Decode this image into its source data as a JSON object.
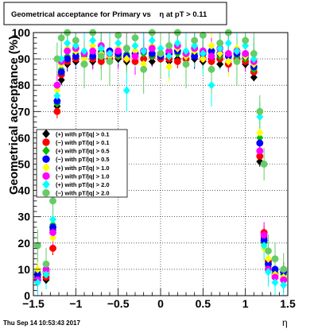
{
  "chart_data": {
    "type": "scatter",
    "title": "Geometrical acceptance for Primary vs    η at pT > 0.11",
    "xlabel": "η",
    "ylabel": "Geometrical acceptance (%)",
    "xlim": [
      -1.5,
      1.5
    ],
    "ylim": [
      0,
      100
    ],
    "x_ticks": [
      -1.5,
      -1,
      -0.5,
      0,
      0.5,
      1,
      1.5
    ],
    "x_tick_labels": [
      "−1.5",
      "−1",
      "−0.5",
      "0",
      "0.5",
      "1",
      "1.5"
    ],
    "y_ticks": [
      0,
      10,
      20,
      30,
      40,
      50,
      60,
      70,
      80,
      90,
      100
    ],
    "y_tick_labels": [
      "0",
      "10",
      "20",
      "30",
      "40",
      "50",
      "60",
      "70",
      "80",
      "90",
      "100"
    ],
    "grid": true,
    "legend_position": "middle-left",
    "timestamp": "Thu Sep 14 10:53:43 2017",
    "series": [
      {
        "name": "(+) with pT/|q| > 0.1",
        "color": "#000000",
        "x": [
          -1.45,
          -1.35,
          -1.27,
          -1.22,
          -1.17,
          -1.1,
          -1,
          -0.9,
          -0.8,
          -0.7,
          -0.6,
          -0.5,
          -0.4,
          -0.3,
          -0.2,
          -0.1,
          0,
          0.1,
          0.2,
          0.3,
          0.4,
          0.5,
          0.6,
          0.7,
          0.8,
          0.9,
          1,
          1.1,
          1.17,
          1.22,
          1.27,
          1.35,
          1.45
        ],
        "y": [
          7,
          6,
          25,
          72,
          82,
          88,
          89,
          90,
          89,
          90,
          91,
          90,
          89,
          91,
          90,
          89,
          90,
          89,
          90,
          91,
          90,
          89,
          90,
          88,
          89,
          90,
          88,
          83,
          51,
          22,
          12,
          8,
          7
        ]
      },
      {
        "name": "(−) with pT/|q| > 0.1",
        "color": "#ff0000",
        "x": [
          -1.45,
          -1.35,
          -1.27,
          -1.22,
          -1.17,
          -1.1,
          -1,
          -0.9,
          -0.8,
          -0.7,
          -0.6,
          -0.5,
          -0.4,
          -0.3,
          -0.2,
          -0.1,
          0,
          0.1,
          0.2,
          0.3,
          0.4,
          0.5,
          0.6,
          0.7,
          0.8,
          0.9,
          1,
          1.1,
          1.17,
          1.22,
          1.27,
          1.35,
          1.45
        ],
        "y": [
          6,
          7,
          18,
          70,
          84,
          89,
          90,
          88,
          90,
          89,
          90,
          91,
          90,
          89,
          90,
          91,
          90,
          90,
          89,
          90,
          91,
          90,
          89,
          90,
          88,
          90,
          89,
          85,
          53,
          24,
          13,
          8,
          6
        ]
      },
      {
        "name": "(+) with pT/|q| > 0.5",
        "color": "#00c000",
        "x": [
          -1.45,
          -1.35,
          -1.27,
          -1.22,
          -1.17,
          -1.1,
          -1,
          -0.9,
          -0.8,
          -0.7,
          -0.6,
          -0.5,
          -0.4,
          -0.3,
          -0.2,
          -0.1,
          0,
          0.1,
          0.2,
          0.3,
          0.4,
          0.5,
          0.6,
          0.7,
          0.8,
          0.9,
          1,
          1.1,
          1.17,
          1.22,
          1.27,
          1.35,
          1.45
        ],
        "y": [
          9,
          8,
          27,
          73,
          86,
          91,
          92,
          91,
          92,
          93,
          92,
          91,
          92,
          93,
          92,
          91,
          92,
          93,
          92,
          91,
          92,
          93,
          92,
          91,
          92,
          91,
          90,
          86,
          60,
          20,
          11,
          9,
          8
        ]
      },
      {
        "name": "(−) with pT/|q| > 0.5",
        "color": "#0000ff",
        "x": [
          -1.45,
          -1.35,
          -1.27,
          -1.22,
          -1.17,
          -1.1,
          -1,
          -0.9,
          -0.8,
          -0.7,
          -0.6,
          -0.5,
          -0.4,
          -0.3,
          -0.2,
          -0.1,
          0,
          0.1,
          0.2,
          0.3,
          0.4,
          0.5,
          0.6,
          0.7,
          0.8,
          0.9,
          1,
          1.1,
          1.17,
          1.22,
          1.27,
          1.35,
          1.45
        ],
        "y": [
          8,
          9,
          26,
          74,
          85,
          90,
          91,
          92,
          91,
          92,
          93,
          92,
          91,
          92,
          93,
          92,
          91,
          92,
          93,
          92,
          91,
          92,
          93,
          92,
          91,
          92,
          91,
          87,
          58,
          21,
          12,
          10,
          9
        ]
      },
      {
        "name": "(+) with pT/|q| > 1.0",
        "color": "#ffff00",
        "x": [
          -1.45,
          -1.35,
          -1.27,
          -1.22,
          -1.17,
          -1.1,
          -1,
          -0.9,
          -0.8,
          -0.7,
          -0.6,
          -0.5,
          -0.4,
          -0.3,
          -0.2,
          -0.1,
          0,
          0.1,
          0.2,
          0.3,
          0.4,
          0.5,
          0.6,
          0.7,
          0.8,
          0.9,
          1,
          1.1,
          1.17,
          1.22,
          1.27,
          1.35,
          1.45
        ],
        "y": [
          10,
          9,
          22,
          78,
          88,
          94,
          93,
          90,
          95,
          92,
          91,
          94,
          90,
          93,
          88,
          95,
          92,
          87,
          94,
          91,
          93,
          90,
          95,
          92,
          89,
          94,
          91,
          88,
          62,
          18,
          14,
          8,
          7
        ]
      },
      {
        "name": "(−) with pT/|q| > 1.0",
        "color": "#ff00ff",
        "x": [
          -1.45,
          -1.35,
          -1.27,
          -1.22,
          -1.17,
          -1.1,
          -1,
          -0.9,
          -0.8,
          -0.7,
          -0.6,
          -0.5,
          -0.4,
          -0.3,
          -0.2,
          -0.1,
          0,
          0.1,
          0.2,
          0.3,
          0.4,
          0.5,
          0.6,
          0.7,
          0.8,
          0.9,
          1,
          1.1,
          1.17,
          1.22,
          1.27,
          1.35,
          1.45
        ],
        "y": [
          6,
          10,
          24,
          80,
          89,
          93,
          94,
          92,
          93,
          95,
          92,
          93,
          94,
          91,
          93,
          94,
          92,
          93,
          95,
          92,
          94,
          93,
          91,
          94,
          92,
          93,
          92,
          89,
          55,
          23,
          10,
          7,
          6
        ]
      },
      {
        "name": "(+) with pT/|q| > 2.0",
        "color": "#00ffff",
        "x": [
          -1.45,
          -1.35,
          -1.27,
          -1.22,
          -1.17,
          -1.1,
          -1,
          -0.9,
          -0.8,
          -0.7,
          -0.6,
          -0.5,
          -0.4,
          -0.3,
          -0.2,
          -0.1,
          0,
          0.1,
          0.2,
          0.3,
          0.4,
          0.5,
          0.6,
          0.7,
          0.8,
          0.9,
          1,
          1.1,
          1.17,
          1.22,
          1.27,
          1.35,
          1.45
        ],
        "y": [
          5,
          8,
          29,
          76,
          90,
          96,
          95,
          93,
          97,
          94,
          92,
          96,
          78,
          95,
          93,
          97,
          94,
          91,
          96,
          93,
          95,
          92,
          80,
          94,
          96,
          93,
          95,
          90,
          68,
          19,
          9,
          5,
          4
        ]
      },
      {
        "name": "(−) with pT/|q| > 2.0",
        "color": "#66cc66",
        "x": [
          -1.45,
          -1.35,
          -1.27,
          -1.22,
          -1.17,
          -1.1,
          -1,
          -0.9,
          -0.8,
          -0.7,
          -0.6,
          -0.5,
          -0.4,
          -0.3,
          -0.2,
          -0.1,
          0,
          0.1,
          0.2,
          0.3,
          0.4,
          0.5,
          0.6,
          0.7,
          0.8,
          0.9,
          1,
          1.1,
          1.17,
          1.22,
          1.27,
          1.35,
          1.45
        ],
        "y": [
          19,
          12,
          36,
          90,
          98,
          100,
          97,
          88,
          100,
          91,
          89,
          99,
          94,
          98,
          86,
          100,
          92,
          95,
          100,
          88,
          97,
          99,
          86,
          96,
          100,
          89,
          97,
          92,
          70,
          50,
          17,
          14,
          10
        ]
      }
    ]
  }
}
